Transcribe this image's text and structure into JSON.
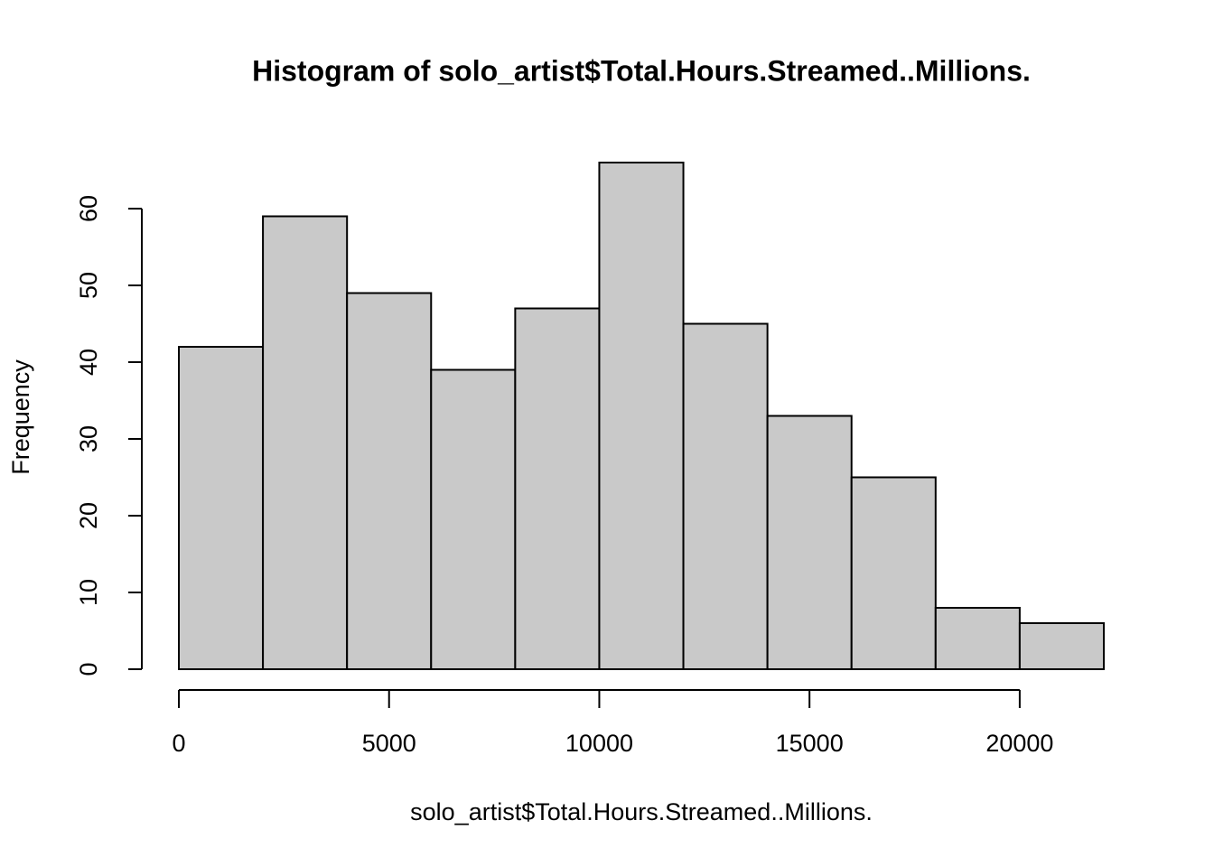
{
  "chart_data": {
    "type": "histogram",
    "title": "Histogram of solo_artist$Total.Hours.Streamed..Millions.",
    "x_label": "solo_artist$Total.Hours.Streamed..Millions.",
    "y_label": "Frequency",
    "bins": [
      0,
      2000,
      4000,
      6000,
      8000,
      10000,
      12000,
      14000,
      16000,
      18000,
      20000,
      22000
    ],
    "values": [
      42,
      59,
      49,
      39,
      47,
      66,
      45,
      33,
      25,
      8,
      6
    ],
    "color": "#c9c9c9",
    "xlim": [
      0,
      22000
    ],
    "ylim": [
      0,
      66
    ],
    "xticks": [
      0,
      5000,
      10000,
      15000,
      20000
    ],
    "yticks": [
      0,
      10,
      20,
      30,
      40,
      50,
      60
    ],
    "grid": false
  }
}
